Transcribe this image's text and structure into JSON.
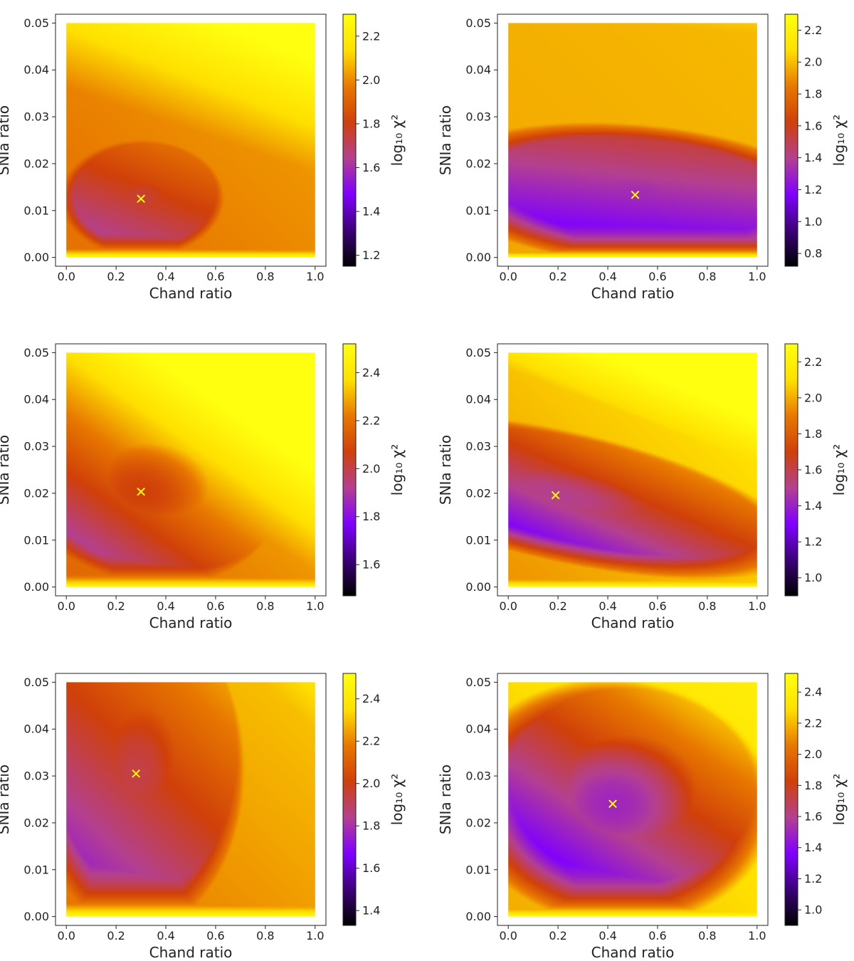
{
  "figure": {
    "description_free": true
  },
  "colors": {
    "gnuplot_stops": [
      "#000000",
      "#3c0078",
      "#8000ff",
      "#b44090",
      "#d0400a",
      "#e87800",
      "#ffe000",
      "#ffff10"
    ],
    "marker": "#ffff00",
    "axis": "#222222"
  },
  "chart_data": [
    {
      "type": "heatmap",
      "xlabel": "Chand ratio",
      "ylabel": "SNIa ratio",
      "xlim": [
        0.0,
        1.0
      ],
      "ylim": [
        0.0,
        0.05
      ],
      "xticks": [
        "0.0",
        "0.2",
        "0.4",
        "0.6",
        "0.8",
        "1.0"
      ],
      "yticks": [
        "0.00",
        "0.01",
        "0.02",
        "0.03",
        "0.04",
        "0.05"
      ],
      "colorbar": {
        "label": "log₁₀ χ²",
        "range": [
          1.15,
          2.3
        ],
        "ticks": [
          "1.2",
          "1.4",
          "1.6",
          "1.8",
          "2.0",
          "2.2"
        ]
      },
      "minimum": {
        "x": 0.3,
        "y": 0.0125,
        "marker": "✕"
      },
      "landscape": {
        "sx": 0.12,
        "sy": 0.0045,
        "slope": 0.0,
        "ramp_lo": 2.3,
        "ramp_scale": 0.0032,
        "ramp_xdep": 0.0,
        "up_x": 0.25,
        "up_y": 0.6,
        "vmin": 1.15,
        "vmax": 2.3
      }
    },
    {
      "type": "heatmap",
      "xlabel": "Chand ratio",
      "ylabel": "SNIa ratio",
      "xlim": [
        0.0,
        1.0
      ],
      "ylim": [
        0.0,
        0.05
      ],
      "xticks": [
        "0.0",
        "0.2",
        "0.4",
        "0.6",
        "0.8",
        "1.0"
      ],
      "yticks": [
        "0.00",
        "0.01",
        "0.02",
        "0.03",
        "0.04",
        "0.05"
      ],
      "colorbar": {
        "label": "log₁₀ χ²",
        "range": [
          0.72,
          2.3
        ],
        "ticks": [
          "0.8",
          "1.0",
          "1.2",
          "1.4",
          "1.6",
          "1.8",
          "2.0",
          "2.2"
        ]
      },
      "minimum": {
        "x": 0.51,
        "y": 0.0133,
        "marker": "✕"
      },
      "landscape": {
        "sx": 0.25,
        "sy": 0.0045,
        "slope": -0.004,
        "ramp_lo": 2.3,
        "ramp_scale": 0.003,
        "ramp_xdep": 0.0,
        "up_x": 0.1,
        "up_y": 0.9,
        "vmin": 0.72,
        "vmax": 2.3
      }
    },
    {
      "type": "heatmap",
      "xlabel": "Chand ratio",
      "ylabel": "SNIa ratio",
      "xlim": [
        0.0,
        1.0
      ],
      "ylim": [
        0.0,
        0.05
      ],
      "xticks": [
        "0.0",
        "0.2",
        "0.4",
        "0.6",
        "0.8",
        "1.0"
      ],
      "yticks": [
        "0.00",
        "0.01",
        "0.02",
        "0.03",
        "0.04",
        "0.05"
      ],
      "colorbar": {
        "label": "log₁₀ χ²",
        "range": [
          1.47,
          2.52
        ],
        "ticks": [
          "1.6",
          "1.8",
          "2.0",
          "2.2",
          "2.4"
        ]
      },
      "minimum": {
        "x": 0.3,
        "y": 0.0203,
        "marker": "✕"
      },
      "landscape": {
        "sx": 0.2,
        "sy": 0.0075,
        "slope": -0.006,
        "ramp_lo": 2.5,
        "ramp_scale": 0.004,
        "ramp_xdep": 0.0,
        "up_x": 0.45,
        "up_y": 0.6,
        "vmin": 1.47,
        "vmax": 2.52
      }
    },
    {
      "type": "heatmap",
      "xlabel": "Chand ratio",
      "ylabel": "SNIa ratio",
      "xlim": [
        0.0,
        1.0
      ],
      "ylim": [
        0.0,
        0.05
      ],
      "xticks": [
        "0.0",
        "0.2",
        "0.4",
        "0.6",
        "0.8",
        "1.0"
      ],
      "yticks": [
        "0.00",
        "0.01",
        "0.02",
        "0.03",
        "0.04",
        "0.05"
      ],
      "colorbar": {
        "label": "log₁₀ χ²",
        "range": [
          0.9,
          2.3
        ],
        "ticks": [
          "1.0",
          "1.2",
          "1.4",
          "1.6",
          "1.8",
          "2.0",
          "2.2"
        ]
      },
      "minimum": {
        "x": 0.19,
        "y": 0.0195,
        "marker": "✕"
      },
      "landscape": {
        "sx": 0.3,
        "sy": 0.0045,
        "slope": -0.011,
        "ramp_lo": 2.3,
        "ramp_scale": 0.004,
        "ramp_xdep": 0.0,
        "up_x": 0.5,
        "up_y": 1.1,
        "vmin": 0.9,
        "vmax": 2.3
      }
    },
    {
      "type": "heatmap",
      "xlabel": "Chand ratio",
      "ylabel": "SNIa ratio",
      "xlim": [
        0.0,
        1.0
      ],
      "ylim": [
        0.0,
        0.05
      ],
      "xticks": [
        "0.0",
        "0.2",
        "0.4",
        "0.6",
        "0.8",
        "1.0"
      ],
      "yticks": [
        "0.00",
        "0.01",
        "0.02",
        "0.03",
        "0.04",
        "0.05"
      ],
      "colorbar": {
        "label": "log₁₀ χ²",
        "range": [
          1.33,
          2.52
        ],
        "ticks": [
          "1.4",
          "1.6",
          "1.8",
          "2.0",
          "2.2",
          "2.4"
        ]
      },
      "minimum": {
        "x": 0.28,
        "y": 0.0305,
        "marker": "✕"
      },
      "landscape": {
        "sx": 0.15,
        "sy": 0.012,
        "slope": 0.0,
        "ramp_lo": 2.5,
        "ramp_scale": 0.0055,
        "ramp_xdep": 0.0,
        "up_x": 0.35,
        "up_y": 0.35,
        "vmin": 1.33,
        "vmax": 2.52
      }
    },
    {
      "type": "heatmap",
      "xlabel": "Chand ratio",
      "ylabel": "SNIa ratio",
      "xlim": [
        0.0,
        1.0
      ],
      "ylim": [
        0.0,
        0.05
      ],
      "xticks": [
        "0.0",
        "0.2",
        "0.4",
        "0.6",
        "0.8",
        "1.0"
      ],
      "yticks": [
        "0.00",
        "0.01",
        "0.02",
        "0.03",
        "0.04",
        "0.05"
      ],
      "colorbar": {
        "label": "log₁₀ χ²",
        "range": [
          0.9,
          2.52
        ],
        "ticks": [
          "1.0",
          "1.2",
          "1.4",
          "1.6",
          "1.8",
          "2.0",
          "2.2",
          "2.4"
        ]
      },
      "minimum": {
        "x": 0.42,
        "y": 0.024,
        "marker": "✕"
      },
      "landscape": {
        "sx": 0.18,
        "sy": 0.0075,
        "slope": -0.002,
        "ramp_lo": 2.5,
        "ramp_scale": 0.005,
        "ramp_xdep": 0.0,
        "up_x": 0.55,
        "up_y": 0.8,
        "vmin": 0.9,
        "vmax": 2.52
      }
    }
  ]
}
